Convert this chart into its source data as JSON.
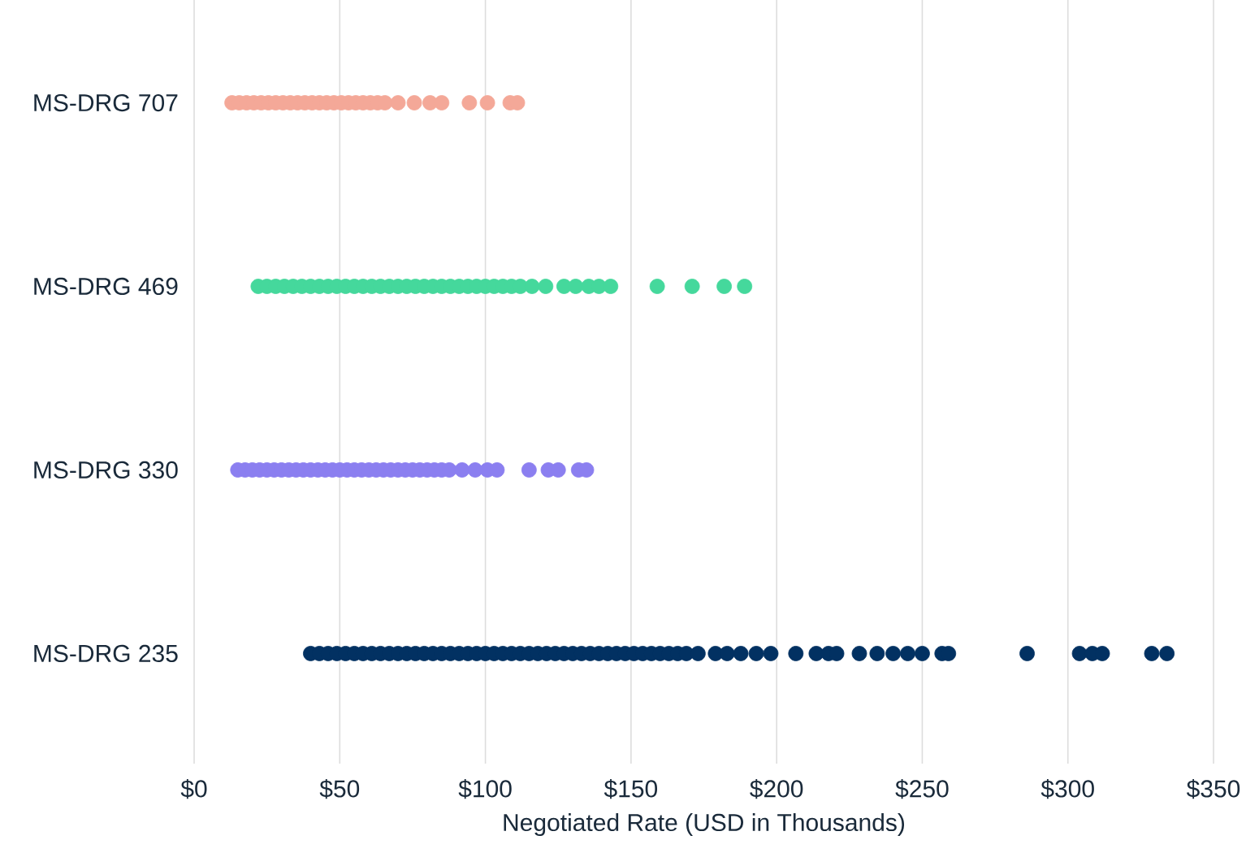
{
  "chart_data": {
    "type": "scatter",
    "orientation": "horizontal",
    "grid": "x",
    "xlabel": "Negotiated Rate (USD in Thousands)",
    "categories": [
      "MS-DRG 707",
      "MS-DRG 469",
      "MS-DRG 330",
      "MS-DRG 235"
    ],
    "xlim": [
      0,
      350
    ],
    "xticks": [
      {
        "value": 0,
        "label": "$0"
      },
      {
        "value": 50,
        "label": "$50"
      },
      {
        "value": 100,
        "label": "$100"
      },
      {
        "value": 150,
        "label": "$150"
      },
      {
        "value": 200,
        "label": "$200"
      },
      {
        "value": 250,
        "label": "$250"
      },
      {
        "value": 300,
        "label": "$300"
      },
      {
        "value": 350,
        "label": "$350"
      }
    ],
    "series": [
      {
        "color": "#f4a898",
        "x": [
          "MS-DRG 707",
          "MS-DRG 707",
          "MS-DRG 707",
          "MS-DRG 707",
          "MS-DRG 707",
          "MS-DRG 707",
          "MS-DRG 707",
          "MS-DRG 707",
          "MS-DRG 707",
          "MS-DRG 707",
          "MS-DRG 707",
          "MS-DRG 707",
          "MS-DRG 707",
          "MS-DRG 707",
          "MS-DRG 707",
          "MS-DRG 707",
          "MS-DRG 707",
          "MS-DRG 707",
          "MS-DRG 707",
          "MS-DRG 707",
          "MS-DRG 707",
          "MS-DRG 707",
          "MS-DRG 707",
          "MS-DRG 707",
          "MS-DRG 707",
          "MS-DRG 707",
          "MS-DRG 707",
          "MS-DRG 707",
          "MS-DRG 707",
          "MS-DRG 707"
        ],
        "values": [
          13,
          15.5,
          18,
          20.5,
          23,
          25.5,
          28,
          30.5,
          33,
          35.5,
          38,
          40.5,
          43,
          45.5,
          48,
          50.5,
          53,
          55.5,
          58,
          60.5,
          63,
          65.5,
          70,
          75.6,
          81,
          85,
          94.5,
          100.7,
          108.5,
          111
        ]
      },
      {
        "color": "#45d89c",
        "x": [
          "MS-DRG 469",
          "MS-DRG 469",
          "MS-DRG 469",
          "MS-DRG 469",
          "MS-DRG 469",
          "MS-DRG 469",
          "MS-DRG 469",
          "MS-DRG 469",
          "MS-DRG 469",
          "MS-DRG 469",
          "MS-DRG 469",
          "MS-DRG 469",
          "MS-DRG 469",
          "MS-DRG 469",
          "MS-DRG 469",
          "MS-DRG 469",
          "MS-DRG 469",
          "MS-DRG 469",
          "MS-DRG 469",
          "MS-DRG 469",
          "MS-DRG 469",
          "MS-DRG 469",
          "MS-DRG 469",
          "MS-DRG 469",
          "MS-DRG 469",
          "MS-DRG 469",
          "MS-DRG 469",
          "MS-DRG 469",
          "MS-DRG 469",
          "MS-DRG 469",
          "MS-DRG 469",
          "MS-DRG 469",
          "MS-DRG 469",
          "MS-DRG 469",
          "MS-DRG 469",
          "MS-DRG 469",
          "MS-DRG 469",
          "MS-DRG 469",
          "MS-DRG 469",
          "MS-DRG 469",
          "MS-DRG 469",
          "MS-DRG 469"
        ],
        "values": [
          22,
          25,
          28,
          31,
          34,
          37,
          40,
          43,
          46,
          49,
          52,
          55,
          58,
          61,
          64,
          67,
          70,
          73,
          76,
          79,
          82,
          85,
          88,
          91,
          94,
          97,
          100,
          103,
          106,
          109,
          112,
          116,
          120.7,
          127,
          131,
          135.5,
          139,
          143,
          159,
          171,
          182,
          189
        ]
      },
      {
        "color": "#8b7ff0",
        "x": [
          "MS-DRG 330",
          "MS-DRG 330",
          "MS-DRG 330",
          "MS-DRG 330",
          "MS-DRG 330",
          "MS-DRG 330",
          "MS-DRG 330",
          "MS-DRG 330",
          "MS-DRG 330",
          "MS-DRG 330",
          "MS-DRG 330",
          "MS-DRG 330",
          "MS-DRG 330",
          "MS-DRG 330",
          "MS-DRG 330",
          "MS-DRG 330",
          "MS-DRG 330",
          "MS-DRG 330",
          "MS-DRG 330",
          "MS-DRG 330",
          "MS-DRG 330",
          "MS-DRG 330",
          "MS-DRG 330",
          "MS-DRG 330",
          "MS-DRG 330",
          "MS-DRG 330",
          "MS-DRG 330",
          "MS-DRG 330",
          "MS-DRG 330",
          "MS-DRG 330",
          "MS-DRG 330",
          "MS-DRG 330",
          "MS-DRG 330",
          "MS-DRG 330",
          "MS-DRG 330",
          "MS-DRG 330",
          "MS-DRG 330",
          "MS-DRG 330",
          "MS-DRG 330"
        ],
        "values": [
          15,
          17.5,
          20,
          22.5,
          25,
          27.5,
          30,
          32.5,
          35,
          37.5,
          40,
          42.5,
          45,
          47.5,
          50,
          52.5,
          55,
          57.5,
          60,
          62.5,
          65,
          67.5,
          70,
          72.5,
          75,
          77.5,
          80,
          82.5,
          85,
          87.6,
          92,
          96.5,
          100.7,
          104,
          115,
          121.6,
          125,
          132,
          134.7
        ]
      },
      {
        "color": "#023162",
        "x": [
          "MS-DRG 235",
          "MS-DRG 235",
          "MS-DRG 235",
          "MS-DRG 235",
          "MS-DRG 235",
          "MS-DRG 235",
          "MS-DRG 235",
          "MS-DRG 235",
          "MS-DRG 235",
          "MS-DRG 235",
          "MS-DRG 235",
          "MS-DRG 235",
          "MS-DRG 235",
          "MS-DRG 235",
          "MS-DRG 235",
          "MS-DRG 235",
          "MS-DRG 235",
          "MS-DRG 235",
          "MS-DRG 235",
          "MS-DRG 235",
          "MS-DRG 235",
          "MS-DRG 235",
          "MS-DRG 235",
          "MS-DRG 235",
          "MS-DRG 235",
          "MS-DRG 235",
          "MS-DRG 235",
          "MS-DRG 235",
          "MS-DRG 235",
          "MS-DRG 235",
          "MS-DRG 235",
          "MS-DRG 235",
          "MS-DRG 235",
          "MS-DRG 235",
          "MS-DRG 235",
          "MS-DRG 235",
          "MS-DRG 235",
          "MS-DRG 235",
          "MS-DRG 235",
          "MS-DRG 235",
          "MS-DRG 235",
          "MS-DRG 235",
          "MS-DRG 235",
          "MS-DRG 235",
          "MS-DRG 235",
          "MS-DRG 235",
          "MS-DRG 235",
          "MS-DRG 235",
          "MS-DRG 235",
          "MS-DRG 235",
          "MS-DRG 235",
          "MS-DRG 235",
          "MS-DRG 235",
          "MS-DRG 235",
          "MS-DRG 235",
          "MS-DRG 235",
          "MS-DRG 235",
          "MS-DRG 235",
          "MS-DRG 235",
          "MS-DRG 235",
          "MS-DRG 235",
          "MS-DRG 235",
          "MS-DRG 235",
          "MS-DRG 235",
          "MS-DRG 235",
          "MS-DRG 235",
          "MS-DRG 235"
        ],
        "values": [
          40,
          43,
          46,
          49,
          52,
          55,
          58,
          61,
          64,
          67,
          70,
          73,
          76,
          79,
          82,
          85,
          88,
          91,
          94,
          97,
          100,
          103,
          106,
          109,
          112,
          115,
          118,
          121,
          124,
          127,
          130,
          133,
          136,
          139,
          142,
          145,
          148,
          151,
          154,
          157,
          160,
          163,
          166,
          169,
          173,
          179,
          183,
          187.7,
          193,
          198,
          206.6,
          213.6,
          217.8,
          220.6,
          228.4,
          234.5,
          240,
          245,
          250,
          256.8,
          259,
          286,
          304,
          308.4,
          311.8,
          328.8,
          334
        ]
      }
    ]
  }
}
